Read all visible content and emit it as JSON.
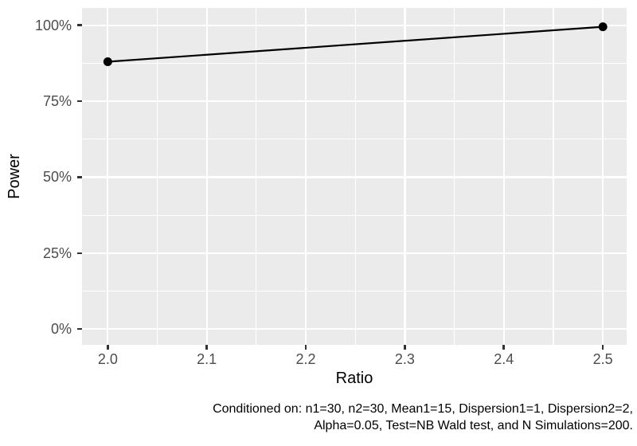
{
  "chart_data": {
    "type": "line",
    "title": "",
    "xlabel": "Ratio",
    "ylabel": "Power",
    "series": [
      {
        "name": "Power",
        "x": [
          2.0,
          2.5
        ],
        "y": [
          0.88,
          0.995
        ]
      }
    ],
    "x_major_ticks": [
      2.0,
      2.1,
      2.2,
      2.3,
      2.4,
      2.5
    ],
    "x_tick_labels": [
      "2.0",
      "2.1",
      "2.2",
      "2.3",
      "2.4",
      "2.5"
    ],
    "x_minor_ticks": [
      2.05,
      2.15,
      2.25,
      2.35,
      2.45
    ],
    "y_major_ticks": [
      0,
      0.25,
      0.5,
      0.75,
      1.0
    ],
    "y_tick_labels": [
      "0%",
      "25%",
      "50%",
      "75%",
      "100%"
    ],
    "y_minor_ticks": [
      0.125,
      0.375,
      0.625,
      0.875
    ],
    "y_format": "percent",
    "xlim": [
      1.974,
      2.524
    ],
    "ylim": [
      -0.052,
      1.057
    ],
    "grid": true,
    "legend": "none",
    "caption_lines": [
      "Conditioned on: n1=30, n2=30, Mean1=15, Dispersion1=1, Dispersion2=2,",
      "Alpha=0.05, Test=NB Wald test, and N Simulations=200."
    ],
    "colors": {
      "panel_background": "#EBEBEB",
      "gridline": "#FFFFFF",
      "tick_label": "#4D4D4D",
      "axis_title": "#000000",
      "tick_mark": "#333333",
      "line": "#000000",
      "point": "#000000"
    }
  }
}
